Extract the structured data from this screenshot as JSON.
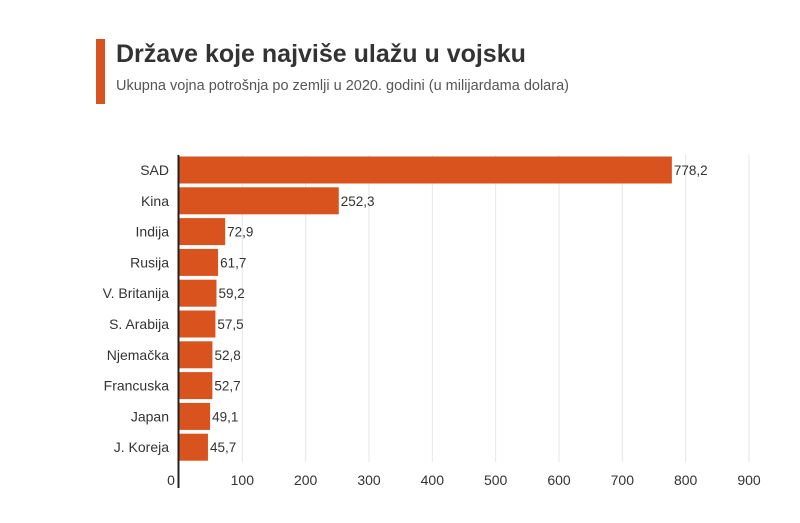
{
  "header": {
    "title": "Države koje najviše ulažu u vojsku",
    "subtitle": "Ukupna vojna potrošnja po zemlji u 2020. godini (u milijardama dolara)"
  },
  "colors": {
    "accent": "#d9531e",
    "bar": "#d9531e",
    "text": "#333333",
    "grid": "#e6e6e6"
  },
  "chart_data": {
    "type": "bar",
    "orientation": "horizontal",
    "categories": [
      "SAD",
      "Kina",
      "Indija",
      "Rusija",
      "V. Britanija",
      "S. Arabija",
      "Njemačka",
      "Francuska",
      "Japan",
      "J. Koreja"
    ],
    "values": [
      778.2,
      252.3,
      72.9,
      61.7,
      59.2,
      57.5,
      52.8,
      52.7,
      49.1,
      45.7
    ],
    "value_labels": [
      "778,2",
      "252,3",
      "72,9",
      "61,7",
      "59,2",
      "57,5",
      "52,8",
      "52,7",
      "49,1",
      "45,7"
    ],
    "xlim": [
      0,
      900
    ],
    "xticks": [
      0,
      100,
      200,
      300,
      400,
      500,
      600,
      700,
      800,
      900
    ],
    "grid": "vertical"
  }
}
